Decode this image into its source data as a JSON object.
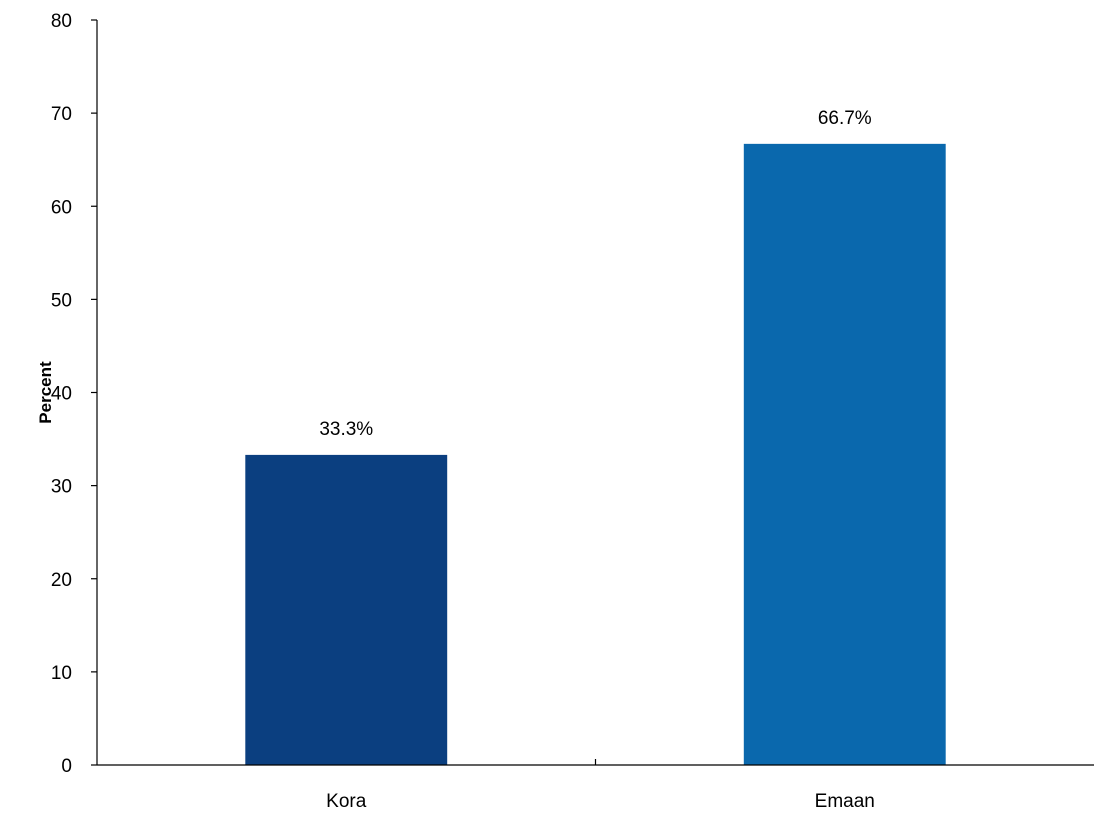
{
  "chart_data": {
    "type": "bar",
    "title": "",
    "xlabel": "",
    "ylabel": "Percent",
    "ylim": [
      0,
      80
    ],
    "yticks": [
      0,
      10,
      20,
      30,
      40,
      50,
      60,
      70,
      80
    ],
    "grid": false,
    "categories": [
      "Kora",
      "Emaan"
    ],
    "values": [
      33.3,
      66.7
    ],
    "data_labels": [
      "33.3%",
      "66.7%"
    ],
    "colors": [
      "#0b3f80",
      "#0a68ad"
    ]
  }
}
